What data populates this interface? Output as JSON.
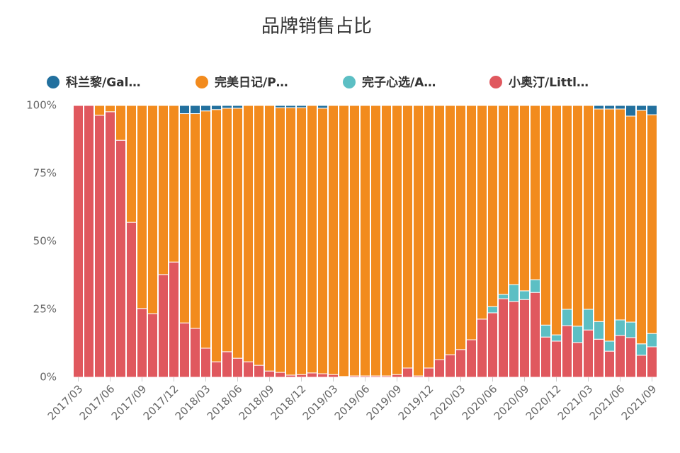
{
  "chart_data": {
    "type": "stacked_bar_percent",
    "title": "品牌销售占比",
    "categories": [
      "2017/03",
      null,
      null,
      "2017/06",
      null,
      null,
      "2017/09",
      null,
      null,
      "2017/12",
      null,
      null,
      "2018/03",
      null,
      null,
      "2018/06",
      null,
      null,
      "2018/09",
      null,
      null,
      "2018/12",
      null,
      null,
      "2019/03",
      null,
      null,
      "2019/06",
      null,
      null,
      "2019/09",
      null,
      null,
      "2019/12",
      null,
      null,
      "2020/03",
      null,
      null,
      "2020/06",
      null,
      null,
      "2020/09",
      null,
      null,
      "2020/12",
      null,
      null,
      "2021/03",
      null,
      null,
      "2021/06",
      null,
      null,
      "2021/09"
    ],
    "series": [
      {
        "name": "科兰黎/Gal…",
        "color": "#22709e",
        "values": [
          0,
          0,
          0,
          0,
          0,
          0,
          0,
          0,
          0,
          0,
          3,
          3,
          2,
          1.5,
          1,
          1,
          0,
          0,
          0,
          0.8,
          0.8,
          0.8,
          0,
          1,
          0,
          0,
          0,
          0,
          0,
          0,
          0,
          0,
          0,
          0,
          0,
          0,
          0,
          0,
          0,
          0,
          0,
          0,
          0,
          0,
          0,
          0,
          0,
          0,
          0,
          1.3,
          1.3,
          1.3,
          3.9,
          1.8,
          3.4
        ]
      },
      {
        "name": "完美日记/P…",
        "color": "#f28b1e",
        "values": [
          0,
          0,
          3.6,
          2.3,
          12.8,
          43,
          74.7,
          76.6,
          62.2,
          57.6,
          77,
          79,
          87.3,
          92.8,
          89.6,
          92,
          94.3,
          95.6,
          97.7,
          97.4,
          98.4,
          98.2,
          98.4,
          97.7,
          99,
          99.7,
          99.5,
          99.5,
          99.5,
          99.5,
          99,
          96.6,
          99.5,
          96.6,
          93.5,
          91.7,
          89.8,
          86.2,
          78.6,
          74,
          69.5,
          65.9,
          68.2,
          64.1,
          80.8,
          84.4,
          75,
          81.2,
          75,
          78.2,
          85.4,
          77.6,
          75.8,
          85.9,
          80.5
        ]
      },
      {
        "name": "完子心选/A…",
        "color": "#5cbfc4",
        "values": [
          0,
          0,
          0,
          0,
          0,
          0,
          0,
          0,
          0,
          0,
          0,
          0,
          0,
          0,
          0,
          0,
          0,
          0,
          0,
          0,
          0,
          0,
          0,
          0,
          0,
          0,
          0,
          0,
          0,
          0,
          0,
          0,
          0,
          0,
          0,
          0,
          0,
          0,
          0,
          2.3,
          1.6,
          6.2,
          3.2,
          4.7,
          4.4,
          2.3,
          6,
          6,
          7.6,
          6.5,
          3.7,
          5.7,
          5.7,
          4.2,
          4.9
        ]
      },
      {
        "name": "小奥汀/Littl…",
        "color": "#e0585e",
        "values": [
          100,
          100,
          96.4,
          97.7,
          87.2,
          57,
          25.3,
          23.4,
          37.8,
          42.4,
          20,
          18,
          10.7,
          5.7,
          9.4,
          7,
          5.7,
          4.4,
          2.3,
          1.8,
          0.8,
          1,
          1.6,
          1.3,
          1,
          0.3,
          0.5,
          0.5,
          0.5,
          0.5,
          1,
          3.4,
          0.5,
          3.4,
          6.5,
          8.3,
          10.2,
          13.8,
          21.4,
          23.7,
          28.9,
          27.9,
          28.6,
          31.2,
          14.8,
          13.3,
          19,
          12.8,
          17.4,
          14,
          9.6,
          15.4,
          14.6,
          8.1,
          11.2
        ]
      }
    ],
    "ylim": [
      0,
      100
    ],
    "yticks": [
      {
        "value": 0,
        "label": "0%"
      },
      {
        "value": 25,
        "label": "25%"
      },
      {
        "value": 50,
        "label": "50%"
      },
      {
        "value": 75,
        "label": "75%"
      },
      {
        "value": 100,
        "label": "100%"
      }
    ],
    "grid": false
  }
}
